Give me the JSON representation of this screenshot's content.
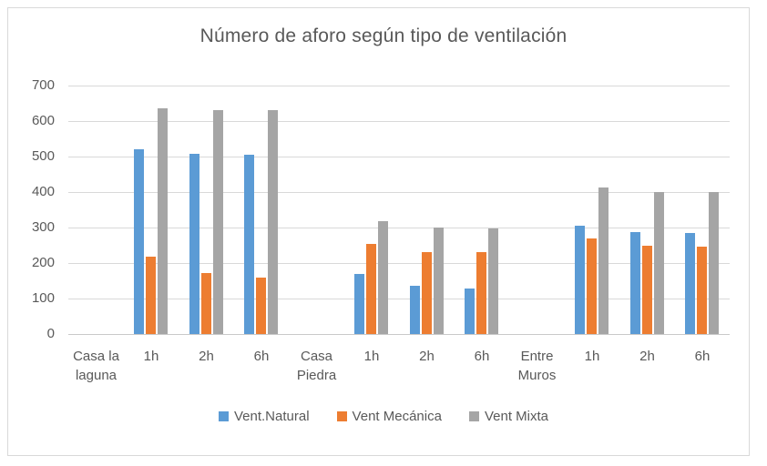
{
  "chart_data": {
    "type": "bar",
    "title": "Número de aforo según tipo de ventilación",
    "categories": [
      "Casa la laguna",
      "1h",
      "2h",
      "6h",
      "Casa Piedra",
      "1h",
      "2h",
      "6h",
      "Entre Muros",
      "1h",
      "2h",
      "6h"
    ],
    "series": [
      {
        "name": "Vent.Natural",
        "color": "#5B9BD5",
        "values": [
          null,
          520,
          508,
          505,
          null,
          170,
          137,
          127,
          null,
          305,
          288,
          285
        ]
      },
      {
        "name": "Vent Mecánica",
        "color": "#ED7D31",
        "values": [
          null,
          218,
          173,
          158,
          null,
          255,
          232,
          230,
          null,
          270,
          250,
          247
        ]
      },
      {
        "name": "Vent Mixta",
        "color": "#A5A5A5",
        "values": [
          null,
          637,
          630,
          630,
          null,
          319,
          300,
          298,
          null,
          412,
          401,
          400
        ]
      }
    ],
    "ylim": [
      0,
      700
    ],
    "ytick_step": 100,
    "grid": true,
    "legend_position": "bottom"
  },
  "style": {
    "text_color": "#595959",
    "gridline_color": "#D9D9D9",
    "border_color": "#D9D9D9",
    "background": "#FFFFFF"
  }
}
